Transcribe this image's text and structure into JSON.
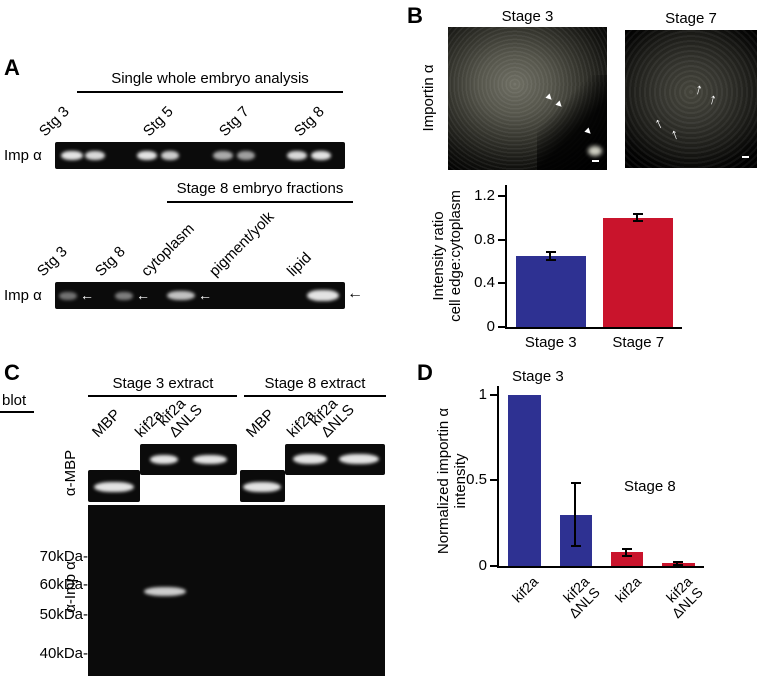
{
  "icons": {
    "arrow_left": "←",
    "arrow_up": "↑",
    "arrowhead_triangle": "▲"
  },
  "figure": {
    "panelA": {
      "label": "A",
      "blot1": {
        "title": "Single whole embryo analysis",
        "lanes": [
          "Stg 3",
          "Stg 5",
          "Stg 7",
          "Stg 8"
        ],
        "row_label": "Imp α"
      },
      "blot2": {
        "title": "Stage 8 embryo fractions",
        "lanes": [
          "Stg 3",
          "Stg 8",
          "cytoplasm",
          "pigment/yolk",
          "lipid"
        ],
        "row_label": "Imp α"
      }
    },
    "panelB": {
      "label": "B",
      "side_label": "Importin α",
      "images": [
        {
          "title": "Stage 3"
        },
        {
          "title": "Stage 7"
        }
      ]
    },
    "panelC": {
      "label": "C",
      "blot_header": "blot",
      "groups": [
        {
          "title": "Stage 3 extract"
        },
        {
          "title": "Stage 8 extract"
        }
      ],
      "lanes": [
        "MBP",
        "kif2a",
        "kif2a\nΔNLS",
        "MBP",
        "kif2a",
        "kif2a\nΔNLS"
      ],
      "rows": [
        {
          "label": "α-MBP"
        },
        {
          "label": "α-Imp α"
        }
      ],
      "mw_markers": [
        "70kDa-",
        "60kDa-",
        "50kDa-",
        "40kDa-"
      ]
    },
    "panelD": {
      "label": "D"
    }
  },
  "chart_data": [
    {
      "type": "bar",
      "title": "",
      "categories": [
        "Stage 3",
        "Stage 7"
      ],
      "values": [
        0.65,
        1.0
      ],
      "errors": [
        0.05,
        0.04
      ],
      "bar_colors": [
        "#2e3192",
        "#c9142c"
      ],
      "ylabel": "Intensity ratio\ncell edge:cytoplasm",
      "xlabel": "",
      "yticks": [
        0,
        0.4,
        0.8,
        1.2
      ],
      "ylim": [
        0,
        1.3
      ],
      "bar_frac": 0.8,
      "xlabel_rotation": 0,
      "grid": false,
      "legend": "none"
    },
    {
      "type": "bar",
      "title": "",
      "categories": [
        "kif2a",
        "kif2a\nΔNLS",
        "kif2a",
        "kif2a\nΔNLS"
      ],
      "values": [
        1.0,
        0.3,
        0.08,
        0.015
      ],
      "errors": [
        0,
        0.19,
        0.025,
        0.012
      ],
      "bar_colors": [
        "#2e3192",
        "#2e3192",
        "#c9142c",
        "#c9142c"
      ],
      "ylabel": "Normalized importin α\nintensity",
      "xlabel": "",
      "yticks": [
        0,
        0.5,
        1
      ],
      "ylim": [
        0,
        1.05
      ],
      "bar_frac": 0.63,
      "xlabel_rotation": 45,
      "annotations": [
        "Stage 3",
        "Stage 8"
      ],
      "grid": false,
      "legend": "none"
    }
  ]
}
